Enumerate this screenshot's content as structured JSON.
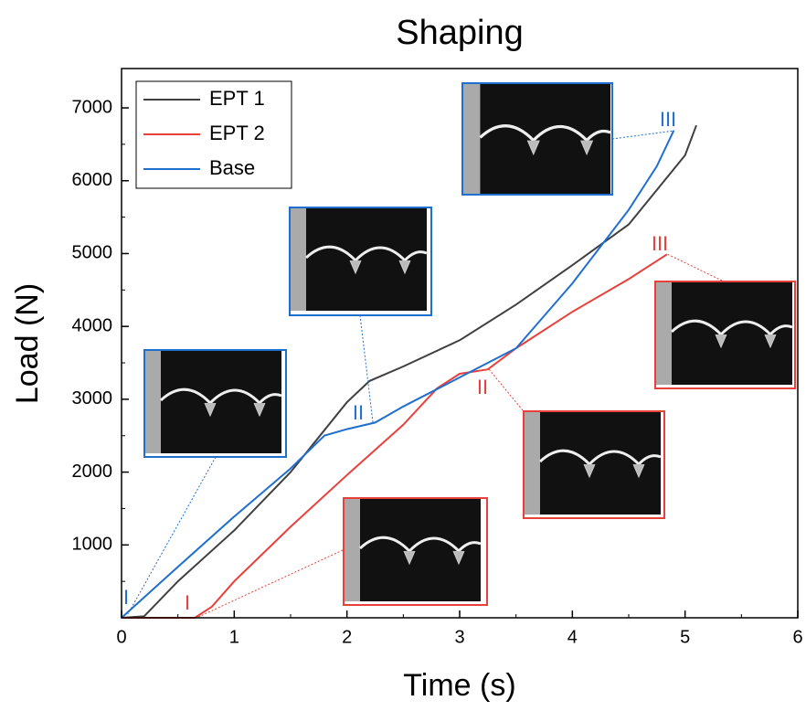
{
  "chart_data": {
    "type": "line",
    "title": "Shaping",
    "xlabel": "Time (s)",
    "ylabel": "Load (N)",
    "xlim": [
      0,
      6
    ],
    "ylim": [
      0,
      7540
    ],
    "xticks": [
      0,
      1,
      2,
      3,
      4,
      5,
      6
    ],
    "yticks": [
      1000,
      2000,
      3000,
      4000,
      5000,
      6000,
      7000
    ],
    "legend": "upper left",
    "series": [
      {
        "name": "EPT 1",
        "color": "#404040",
        "x": [
          0,
          0.2,
          0.5,
          1,
          1.5,
          2,
          2.2,
          2.5,
          3,
          3.5,
          4,
          4.5,
          5,
          5.1
        ],
        "values": [
          0,
          20,
          500,
          1200,
          2000,
          2960,
          3250,
          3450,
          3810,
          4300,
          4840,
          5400,
          6350,
          6760
        ]
      },
      {
        "name": "EPT 2",
        "color": "#e8413c",
        "x": [
          0,
          0.65,
          0.8,
          1,
          1.5,
          2,
          2.5,
          2.8,
          3,
          3.25,
          3.5,
          4,
          4.5,
          4.84
        ],
        "values": [
          0,
          0,
          150,
          500,
          1250,
          1960,
          2650,
          3150,
          3350,
          3410,
          3700,
          4200,
          4650,
          4990
        ]
      },
      {
        "name": "Base",
        "color": "#1f6fd1",
        "x": [
          0,
          0.5,
          1,
          1.5,
          1.8,
          2,
          2.25,
          2.5,
          3,
          3.5,
          4,
          4.5,
          4.75,
          4.9
        ],
        "values": [
          0,
          700,
          1390,
          2050,
          2500,
          2590,
          2680,
          2900,
          3300,
          3700,
          4590,
          5600,
          6200,
          6690
        ]
      }
    ],
    "annotations": [
      {
        "text": "I",
        "color": "#1f6fd1"
      },
      {
        "text": "I",
        "color": "#e8413c"
      },
      {
        "text": "II",
        "color": "#1f6fd1"
      },
      {
        "text": "II",
        "color": "#e8413c"
      },
      {
        "text": "III",
        "color": "#1f6fd1"
      },
      {
        "text": "III",
        "color": "#e8413c"
      }
    ]
  }
}
